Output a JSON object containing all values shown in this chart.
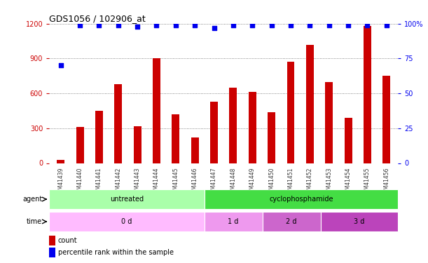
{
  "title": "GDS1056 / 102906_at",
  "samples": [
    "GSM41439",
    "GSM41440",
    "GSM41441",
    "GSM41442",
    "GSM41443",
    "GSM41444",
    "GSM41445",
    "GSM41446",
    "GSM41447",
    "GSM41448",
    "GSM41449",
    "GSM41450",
    "GSM41451",
    "GSM41452",
    "GSM41453",
    "GSM41454",
    "GSM41455",
    "GSM41456"
  ],
  "counts": [
    30,
    310,
    450,
    680,
    320,
    900,
    420,
    220,
    530,
    650,
    610,
    440,
    870,
    1020,
    700,
    390,
    1180,
    750
  ],
  "percentiles": [
    70,
    99,
    99,
    99,
    98,
    99,
    99,
    99,
    97,
    99,
    99,
    99,
    99,
    99,
    99,
    99,
    99,
    99
  ],
  "bar_color": "#cc0000",
  "dot_color": "#0000ee",
  "left_axis_color": "#cc0000",
  "right_axis_color": "#0000ee",
  "ylim_left": [
    0,
    1200
  ],
  "ylim_right": [
    0,
    100
  ],
  "yticks_left": [
    0,
    300,
    600,
    900,
    1200
  ],
  "yticks_right": [
    0,
    25,
    50,
    75,
    100
  ],
  "agent_labels": [
    {
      "label": "untreated",
      "start": 0,
      "end": 8,
      "color": "#aaffaa"
    },
    {
      "label": "cyclophosphamide",
      "start": 8,
      "end": 18,
      "color": "#44dd44"
    }
  ],
  "time_labels": [
    {
      "label": "0 d",
      "start": 0,
      "end": 8,
      "color": "#ffbbff"
    },
    {
      "label": "1 d",
      "start": 8,
      "end": 11,
      "color": "#ee99ee"
    },
    {
      "label": "2 d",
      "start": 11,
      "end": 14,
      "color": "#cc66cc"
    },
    {
      "label": "3 d",
      "start": 14,
      "end": 18,
      "color": "#bb44bb"
    }
  ],
  "legend_count_color": "#cc0000",
  "legend_dot_color": "#0000ee",
  "background_color": "#ffffff",
  "grid_color": "#666666",
  "bar_width": 0.4
}
